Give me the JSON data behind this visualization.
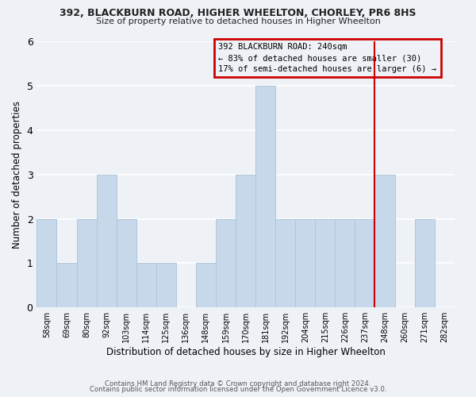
{
  "title1": "392, BLACKBURN ROAD, HIGHER WHEELTON, CHORLEY, PR6 8HS",
  "title2": "Size of property relative to detached houses in Higher Wheelton",
  "xlabel": "Distribution of detached houses by size in Higher Wheelton",
  "ylabel": "Number of detached properties",
  "bar_color": "#c8d8eb",
  "bar_edge_color": "#aec6d8",
  "bin_labels": [
    "58sqm",
    "69sqm",
    "80sqm",
    "92sqm",
    "103sqm",
    "114sqm",
    "125sqm",
    "136sqm",
    "148sqm",
    "159sqm",
    "170sqm",
    "181sqm",
    "192sqm",
    "204sqm",
    "215sqm",
    "226sqm",
    "237sqm",
    "248sqm",
    "260sqm",
    "271sqm",
    "282sqm"
  ],
  "bar_heights": [
    2,
    1,
    2,
    3,
    2,
    1,
    1,
    0,
    1,
    2,
    3,
    5,
    2,
    2,
    2,
    2,
    2,
    3,
    0,
    2,
    0
  ],
  "redline_x": 16.5,
  "ylim": [
    0,
    6
  ],
  "yticks": [
    0,
    1,
    2,
    3,
    4,
    5,
    6
  ],
  "legend_title": "392 BLACKBURN ROAD: 240sqm",
  "legend_line1": "← 83% of detached houses are smaller (30)",
  "legend_line2": "17% of semi-detached houses are larger (6) →",
  "legend_box_color": "#cc0000",
  "footnote1": "Contains HM Land Registry data © Crown copyright and database right 2024.",
  "footnote2": "Contains public sector information licensed under the Open Government Licence v3.0.",
  "background_color": "#eef2f7"
}
